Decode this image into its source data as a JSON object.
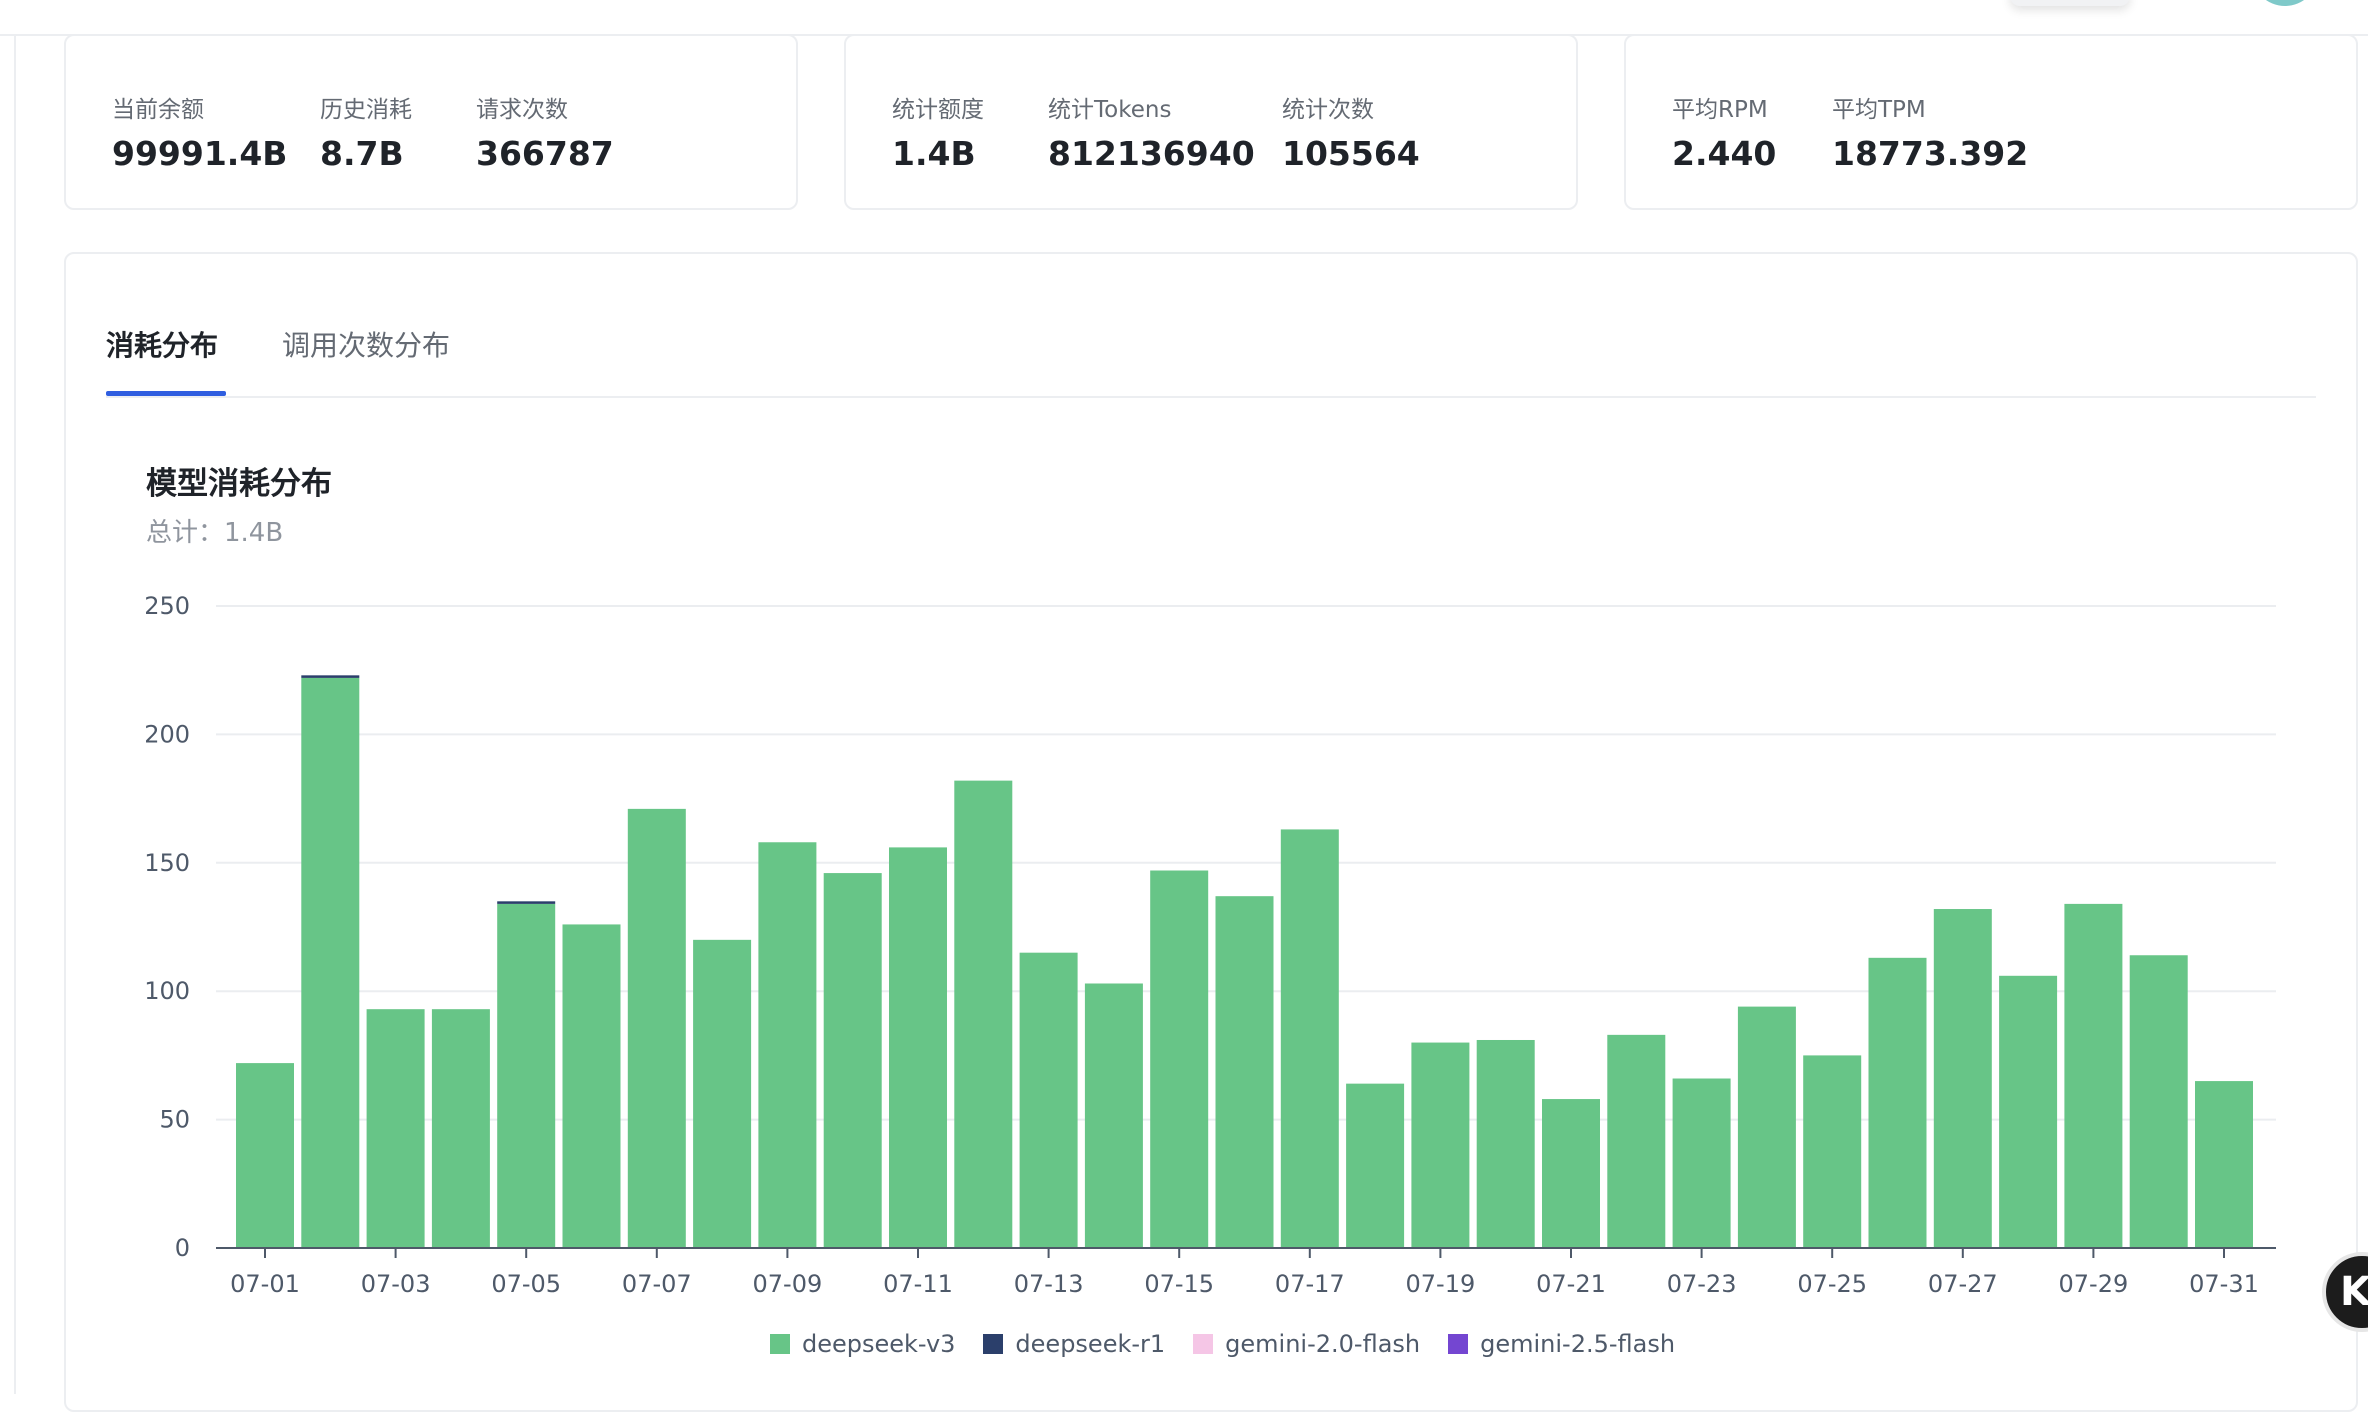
{
  "stat_cards": [
    {
      "items": [
        {
          "label": "当前余额",
          "value": "99991.4B"
        },
        {
          "label": "历史消耗",
          "value": "8.7B"
        },
        {
          "label": "请求次数",
          "value": "366787"
        }
      ]
    },
    {
      "items": [
        {
          "label": "统计额度",
          "value": "1.4B"
        },
        {
          "label": "统计Tokens",
          "value": "812136940"
        },
        {
          "label": "统计次数",
          "value": "105564"
        }
      ]
    },
    {
      "items": [
        {
          "label": "平均RPM",
          "value": "2.440"
        },
        {
          "label": "平均TPM",
          "value": "18773.392"
        }
      ]
    }
  ],
  "tabs": [
    {
      "label": "消耗分布",
      "active": true
    },
    {
      "label": "调用次数分布",
      "active": false
    }
  ],
  "chart_title": "模型消耗分布",
  "chart_total": "总计：1.4B",
  "corner_badge": "K",
  "chart_data": {
    "type": "bar",
    "stacked": true,
    "categories": [
      "07-01",
      "07-02",
      "07-03",
      "07-04",
      "07-05",
      "07-06",
      "07-07",
      "07-08",
      "07-09",
      "07-10",
      "07-11",
      "07-12",
      "07-13",
      "07-14",
      "07-15",
      "07-16",
      "07-17",
      "07-18",
      "07-19",
      "07-20",
      "07-21",
      "07-22",
      "07-23",
      "07-24",
      "07-25",
      "07-26",
      "07-27",
      "07-28",
      "07-29",
      "07-30",
      "07-31"
    ],
    "tick_labels": [
      "07-01",
      "07-03",
      "07-05",
      "07-07",
      "07-09",
      "07-11",
      "07-13",
      "07-15",
      "07-17",
      "07-19",
      "07-21",
      "07-23",
      "07-25",
      "07-27",
      "07-29",
      "07-31"
    ],
    "series": [
      {
        "name": "deepseek-v3",
        "color": "#67c587",
        "values": [
          72,
          222,
          93,
          93,
          134,
          126,
          171,
          120,
          158,
          146,
          156,
          182,
          115,
          103,
          147,
          137,
          163,
          64,
          80,
          81,
          58,
          83,
          66,
          94,
          75,
          113,
          132,
          106,
          134,
          114,
          65
        ]
      },
      {
        "name": "deepseek-r1",
        "color": "#2b3f6b",
        "values": [
          0,
          1,
          0,
          0,
          1,
          0,
          0,
          0,
          0,
          0,
          0,
          0,
          0,
          0,
          0,
          0,
          0,
          0,
          0,
          0,
          0,
          0,
          0,
          0,
          0,
          0,
          0,
          0,
          0,
          0,
          0
        ]
      },
      {
        "name": "gemini-2.0-flash",
        "color": "#f5c6e6",
        "values": [
          0,
          0,
          0,
          0,
          0,
          0,
          0,
          0,
          0,
          0,
          0,
          0,
          0,
          0,
          0,
          0,
          0,
          0,
          0,
          0,
          0,
          0,
          0,
          0,
          0,
          0,
          0,
          0,
          0,
          0,
          0
        ]
      },
      {
        "name": "gemini-2.5-flash",
        "color": "#7446d1",
        "values": [
          0,
          0,
          0,
          0,
          0,
          0,
          0,
          0,
          0,
          0,
          0,
          0,
          0,
          0,
          0,
          0,
          0,
          0,
          0,
          0,
          0,
          0,
          0,
          0,
          0,
          0,
          0,
          0,
          0,
          0,
          0
        ]
      }
    ],
    "y_ticks": [
      0,
      50,
      100,
      150,
      200,
      250
    ],
    "ylim": [
      0,
      250
    ],
    "grid": true,
    "legend_position": "bottom-center"
  }
}
